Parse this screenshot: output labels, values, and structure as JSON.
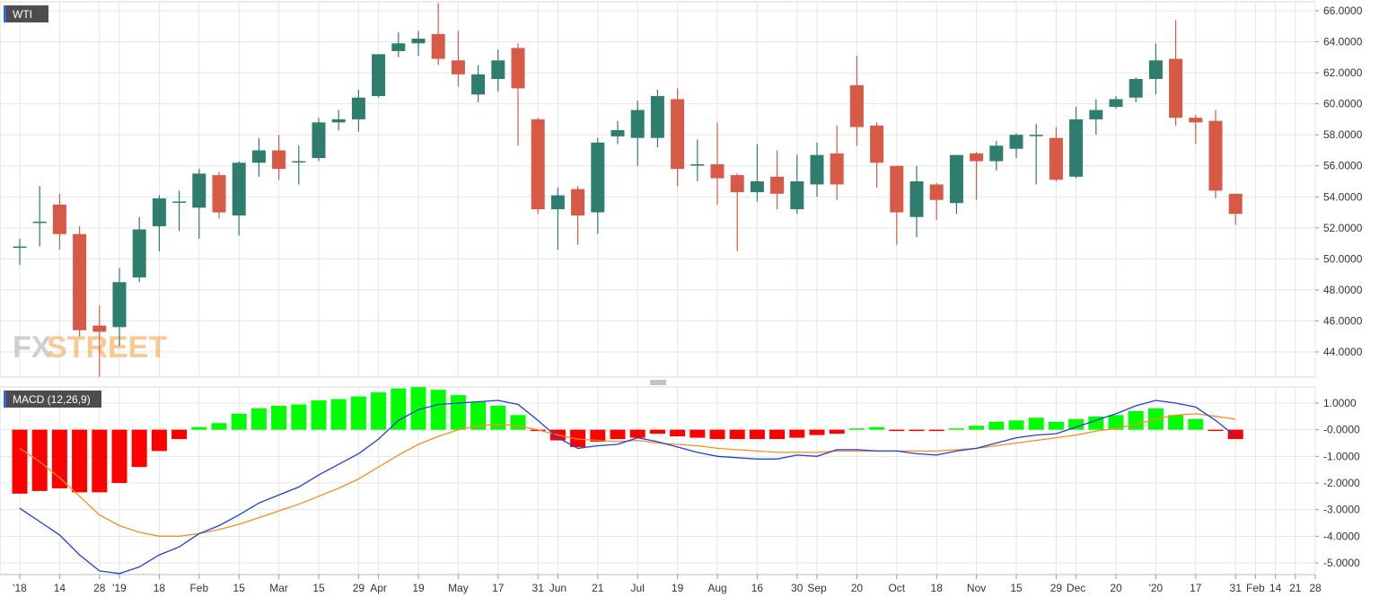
{
  "colors": {
    "bull": "#2f7d6d",
    "bear": "#d65a46",
    "hist_pos": "#00ff00",
    "hist_neg": "#ff0000",
    "macd_line": "#1f3fdd",
    "signal_line": "#ff8c1a",
    "grid": "#e6e6e6",
    "panel_label_bg": "#4d4d4d",
    "watermark": "#bdbdbd",
    "watermark_accent": "#f2a03c"
  },
  "watermark": {
    "part1": "FX",
    "part2": "STREET"
  },
  "chart_data": {
    "type": "candlestick",
    "symbol_label": "WTI",
    "price_axis": {
      "ylim": [
        42.5,
        66.5
      ],
      "ticks": [
        "66.0000",
        "64.0000",
        "62.0000",
        "60.0000",
        "58.0000",
        "56.0000",
        "54.0000",
        "52.0000",
        "50.0000",
        "48.0000",
        "46.0000",
        "44.0000"
      ],
      "tick_values": [
        66,
        64,
        62,
        60,
        58,
        56,
        54,
        52,
        50,
        48,
        46,
        44
      ]
    },
    "x_axis": {
      "ticks": [
        {
          "label": "'18",
          "i": 0
        },
        {
          "label": "14",
          "i": 2
        },
        {
          "label": "28",
          "i": 4
        },
        {
          "label": "'19",
          "i": 5
        },
        {
          "label": "18",
          "i": 7
        },
        {
          "label": "Feb",
          "i": 9
        },
        {
          "label": "15",
          "i": 11
        },
        {
          "label": "Mar",
          "i": 13
        },
        {
          "label": "15",
          "i": 15
        },
        {
          "label": "29",
          "i": 17
        },
        {
          "label": "Apr",
          "i": 18
        },
        {
          "label": "19",
          "i": 20
        },
        {
          "label": "May",
          "i": 22
        },
        {
          "label": "17",
          "i": 24
        },
        {
          "label": "31",
          "i": 26
        },
        {
          "label": "Jun",
          "i": 27
        },
        {
          "label": "21",
          "i": 29
        },
        {
          "label": "Jul",
          "i": 31
        },
        {
          "label": "19",
          "i": 33
        },
        {
          "label": "Aug",
          "i": 35
        },
        {
          "label": "16",
          "i": 37
        },
        {
          "label": "30",
          "i": 39
        },
        {
          "label": "Sep",
          "i": 40
        },
        {
          "label": "20",
          "i": 42
        },
        {
          "label": "Oct",
          "i": 44
        },
        {
          "label": "18",
          "i": 46
        },
        {
          "label": "Nov",
          "i": 48
        },
        {
          "label": "15",
          "i": 50
        },
        {
          "label": "29",
          "i": 52
        },
        {
          "label": "Dec",
          "i": 53
        },
        {
          "label": "20",
          "i": 55
        },
        {
          "label": "'20",
          "i": 57
        },
        {
          "label": "17",
          "i": 59
        },
        {
          "label": "31",
          "i": 61
        },
        {
          "label": "Feb",
          "i": 62
        },
        {
          "label": "14",
          "i": 63
        },
        {
          "label": "21",
          "i": 64
        },
        {
          "label": "28",
          "i": 65
        }
      ]
    },
    "candles": [
      {
        "o": 50.8,
        "h": 51.3,
        "l": 49.6,
        "c": 50.8
      },
      {
        "o": 52.4,
        "h": 54.7,
        "l": 50.8,
        "c": 52.4
      },
      {
        "o": 53.5,
        "h": 54.2,
        "l": 50.6,
        "c": 51.6
      },
      {
        "o": 51.6,
        "h": 52.1,
        "l": 45.0,
        "c": 45.4
      },
      {
        "o": 45.7,
        "h": 47.0,
        "l": 42.4,
        "c": 45.3
      },
      {
        "o": 45.6,
        "h": 49.4,
        "l": 44.4,
        "c": 48.5
      },
      {
        "o": 48.8,
        "h": 52.7,
        "l": 48.5,
        "c": 51.9
      },
      {
        "o": 52.1,
        "h": 54.1,
        "l": 50.5,
        "c": 53.9
      },
      {
        "o": 53.7,
        "h": 54.4,
        "l": 51.8,
        "c": 53.7
      },
      {
        "o": 53.3,
        "h": 55.8,
        "l": 51.3,
        "c": 55.5
      },
      {
        "o": 55.4,
        "h": 55.6,
        "l": 52.6,
        "c": 53.0
      },
      {
        "o": 52.8,
        "h": 56.3,
        "l": 51.5,
        "c": 56.2
      },
      {
        "o": 56.2,
        "h": 57.8,
        "l": 55.3,
        "c": 57.0
      },
      {
        "o": 57.0,
        "h": 58.0,
        "l": 55.1,
        "c": 55.8
      },
      {
        "o": 56.3,
        "h": 57.3,
        "l": 54.8,
        "c": 56.3
      },
      {
        "o": 56.5,
        "h": 59.1,
        "l": 56.3,
        "c": 58.8
      },
      {
        "o": 58.8,
        "h": 59.6,
        "l": 58.3,
        "c": 59.0
      },
      {
        "o": 59.0,
        "h": 60.9,
        "l": 58.2,
        "c": 60.4
      },
      {
        "o": 60.5,
        "h": 63.2,
        "l": 60.4,
        "c": 63.2
      },
      {
        "o": 63.4,
        "h": 64.6,
        "l": 63.0,
        "c": 63.9
      },
      {
        "o": 63.9,
        "h": 64.7,
        "l": 63.1,
        "c": 64.2
      },
      {
        "o": 64.5,
        "h": 66.5,
        "l": 62.5,
        "c": 62.9
      },
      {
        "o": 62.8,
        "h": 64.7,
        "l": 61.1,
        "c": 61.9
      },
      {
        "o": 60.6,
        "h": 62.5,
        "l": 60.1,
        "c": 61.9
      },
      {
        "o": 61.6,
        "h": 63.5,
        "l": 60.8,
        "c": 62.8
      },
      {
        "o": 63.6,
        "h": 63.9,
        "l": 57.3,
        "c": 61.0
      },
      {
        "o": 59.0,
        "h": 59.1,
        "l": 52.9,
        "c": 53.2
      },
      {
        "o": 53.2,
        "h": 54.6,
        "l": 50.6,
        "c": 54.1
      },
      {
        "o": 54.5,
        "h": 54.7,
        "l": 50.9,
        "c": 52.8
      },
      {
        "o": 53.0,
        "h": 57.8,
        "l": 51.6,
        "c": 57.5
      },
      {
        "o": 57.9,
        "h": 58.9,
        "l": 57.4,
        "c": 58.3
      },
      {
        "o": 57.8,
        "h": 60.2,
        "l": 56.0,
        "c": 59.6
      },
      {
        "o": 57.8,
        "h": 60.9,
        "l": 57.2,
        "c": 60.5
      },
      {
        "o": 60.3,
        "h": 61.0,
        "l": 54.7,
        "c": 55.8
      },
      {
        "o": 56.1,
        "h": 57.7,
        "l": 55.0,
        "c": 56.1
      },
      {
        "o": 56.1,
        "h": 58.8,
        "l": 53.5,
        "c": 55.2
      },
      {
        "o": 55.4,
        "h": 55.5,
        "l": 50.5,
        "c": 54.3
      },
      {
        "o": 54.3,
        "h": 57.4,
        "l": 53.7,
        "c": 55.0
      },
      {
        "o": 55.3,
        "h": 57.0,
        "l": 53.2,
        "c": 54.2
      },
      {
        "o": 53.2,
        "h": 56.7,
        "l": 52.9,
        "c": 55.0
      },
      {
        "o": 54.8,
        "h": 57.5,
        "l": 54.0,
        "c": 56.7
      },
      {
        "o": 56.8,
        "h": 58.6,
        "l": 53.8,
        "c": 54.8
      },
      {
        "o": 61.2,
        "h": 63.1,
        "l": 57.3,
        "c": 58.5
      },
      {
        "o": 58.6,
        "h": 58.8,
        "l": 54.6,
        "c": 56.2
      },
      {
        "o": 56.0,
        "h": 56.0,
        "l": 50.9,
        "c": 53.0
      },
      {
        "o": 52.7,
        "h": 56.0,
        "l": 51.4,
        "c": 55.0
      },
      {
        "o": 54.8,
        "h": 54.9,
        "l": 52.5,
        "c": 53.8
      },
      {
        "o": 53.6,
        "h": 56.7,
        "l": 52.9,
        "c": 56.7
      },
      {
        "o": 56.8,
        "h": 56.9,
        "l": 53.8,
        "c": 56.3
      },
      {
        "o": 56.3,
        "h": 57.6,
        "l": 55.7,
        "c": 57.3
      },
      {
        "o": 57.1,
        "h": 58.1,
        "l": 56.5,
        "c": 58.0
      },
      {
        "o": 58.0,
        "h": 58.7,
        "l": 54.8,
        "c": 58.0
      },
      {
        "o": 57.8,
        "h": 58.5,
        "l": 55.0,
        "c": 55.1
      },
      {
        "o": 55.3,
        "h": 59.8,
        "l": 55.2,
        "c": 59.0
      },
      {
        "o": 59.0,
        "h": 60.3,
        "l": 58.0,
        "c": 59.6
      },
      {
        "o": 59.8,
        "h": 60.5,
        "l": 59.7,
        "c": 60.3
      },
      {
        "o": 60.4,
        "h": 61.7,
        "l": 60.1,
        "c": 61.6
      },
      {
        "o": 61.6,
        "h": 63.9,
        "l": 60.6,
        "c": 62.8
      },
      {
        "o": 62.9,
        "h": 65.4,
        "l": 58.6,
        "c": 59.1
      },
      {
        "o": 59.1,
        "h": 59.3,
        "l": 57.4,
        "c": 58.8
      },
      {
        "o": 58.9,
        "h": 59.6,
        "l": 53.9,
        "c": 54.4
      },
      {
        "o": 54.2,
        "h": 54.2,
        "l": 52.2,
        "c": 52.9
      }
    ],
    "macd": {
      "label": "MACD (12,26,9)",
      "ylim": [
        -5.6,
        1.6
      ],
      "ticks": [
        "1.0000",
        "-0.0000",
        "-1.0000",
        "-2.0000",
        "-3.0000",
        "-4.0000",
        "-5.0000"
      ],
      "tick_values": [
        1,
        0,
        -1,
        -2,
        -3,
        -4,
        -5
      ],
      "histogram": [
        -2.4,
        -2.3,
        -2.2,
        -2.35,
        -2.35,
        -2.0,
        -1.4,
        -0.8,
        -0.35,
        0.1,
        0.25,
        0.6,
        0.8,
        0.9,
        0.95,
        1.1,
        1.15,
        1.25,
        1.4,
        1.55,
        1.6,
        1.5,
        1.3,
        1.05,
        0.9,
        0.55,
        -0.05,
        -0.4,
        -0.65,
        -0.45,
        -0.35,
        -0.3,
        -0.15,
        -0.25,
        -0.3,
        -0.35,
        -0.35,
        -0.35,
        -0.35,
        -0.3,
        -0.2,
        -0.15,
        0.05,
        0.1,
        -0.05,
        -0.05,
        -0.05,
        0.05,
        0.15,
        0.3,
        0.35,
        0.45,
        0.3,
        0.4,
        0.5,
        0.55,
        0.7,
        0.8,
        0.55,
        0.4,
        -0.05,
        -0.35
      ],
      "macd_line": [
        -2.95,
        -3.45,
        -3.95,
        -4.7,
        -5.3,
        -5.4,
        -5.15,
        -4.7,
        -4.4,
        -3.9,
        -3.6,
        -3.2,
        -2.75,
        -2.45,
        -2.15,
        -1.7,
        -1.3,
        -0.9,
        -0.35,
        0.35,
        0.75,
        0.95,
        1.0,
        1.05,
        1.1,
        0.95,
        0.35,
        -0.3,
        -0.7,
        -0.6,
        -0.55,
        -0.3,
        -0.45,
        -0.65,
        -0.85,
        -1.0,
        -1.05,
        -1.1,
        -1.1,
        -0.95,
        -1.0,
        -0.75,
        -0.75,
        -0.8,
        -0.8,
        -0.9,
        -0.95,
        -0.8,
        -0.7,
        -0.5,
        -0.3,
        -0.2,
        -0.15,
        0.1,
        0.35,
        0.6,
        0.9,
        1.1,
        1.0,
        0.85,
        0.35,
        -0.25
      ],
      "signal_line": [
        -0.7,
        -1.2,
        -1.8,
        -2.5,
        -3.2,
        -3.6,
        -3.85,
        -4.0,
        -4.0,
        -3.9,
        -3.75,
        -3.55,
        -3.3,
        -3.05,
        -2.8,
        -2.5,
        -2.2,
        -1.85,
        -1.4,
        -0.95,
        -0.55,
        -0.25,
        0.0,
        0.15,
        0.2,
        0.15,
        0.0,
        -0.2,
        -0.35,
        -0.4,
        -0.45,
        -0.4,
        -0.5,
        -0.55,
        -0.6,
        -0.7,
        -0.75,
        -0.8,
        -0.85,
        -0.85,
        -0.85,
        -0.8,
        -0.8,
        -0.8,
        -0.8,
        -0.8,
        -0.8,
        -0.75,
        -0.7,
        -0.6,
        -0.5,
        -0.4,
        -0.3,
        -0.2,
        -0.05,
        0.05,
        0.2,
        0.4,
        0.55,
        0.6,
        0.5,
        0.4
      ]
    }
  }
}
